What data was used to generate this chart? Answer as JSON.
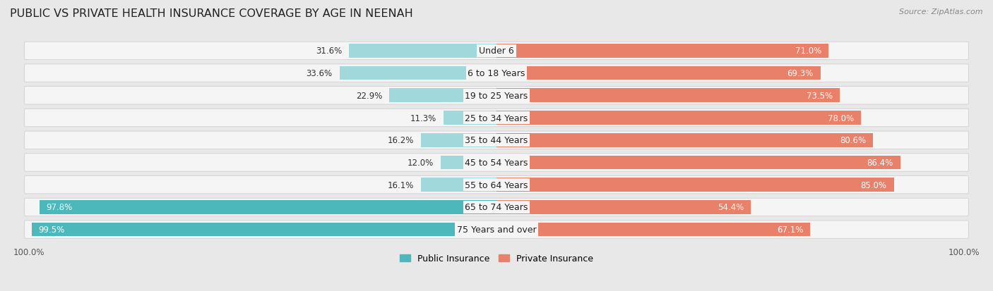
{
  "title": "PUBLIC VS PRIVATE HEALTH INSURANCE COVERAGE BY AGE IN NEENAH",
  "source": "Source: ZipAtlas.com",
  "categories": [
    "Under 6",
    "6 to 18 Years",
    "19 to 25 Years",
    "25 to 34 Years",
    "35 to 44 Years",
    "45 to 54 Years",
    "55 to 64 Years",
    "65 to 74 Years",
    "75 Years and over"
  ],
  "public_values": [
    31.6,
    33.6,
    22.9,
    11.3,
    16.2,
    12.0,
    16.1,
    97.8,
    99.5
  ],
  "private_values": [
    71.0,
    69.3,
    73.5,
    78.0,
    80.6,
    86.4,
    85.0,
    54.4,
    67.1
  ],
  "public_color_strong": "#4db8bc",
  "public_color_light": "#a0d8db",
  "private_color_strong": "#e8806a",
  "private_color_light": "#f2bfb2",
  "bg_color": "#e8e8e8",
  "bar_bg_color": "#f5f5f5",
  "legend_labels": [
    "Public Insurance",
    "Private Insurance"
  ],
  "title_fontsize": 11.5,
  "label_fontsize": 9,
  "value_fontsize": 8.5,
  "axis_label_fontsize": 8.5,
  "source_fontsize": 8
}
